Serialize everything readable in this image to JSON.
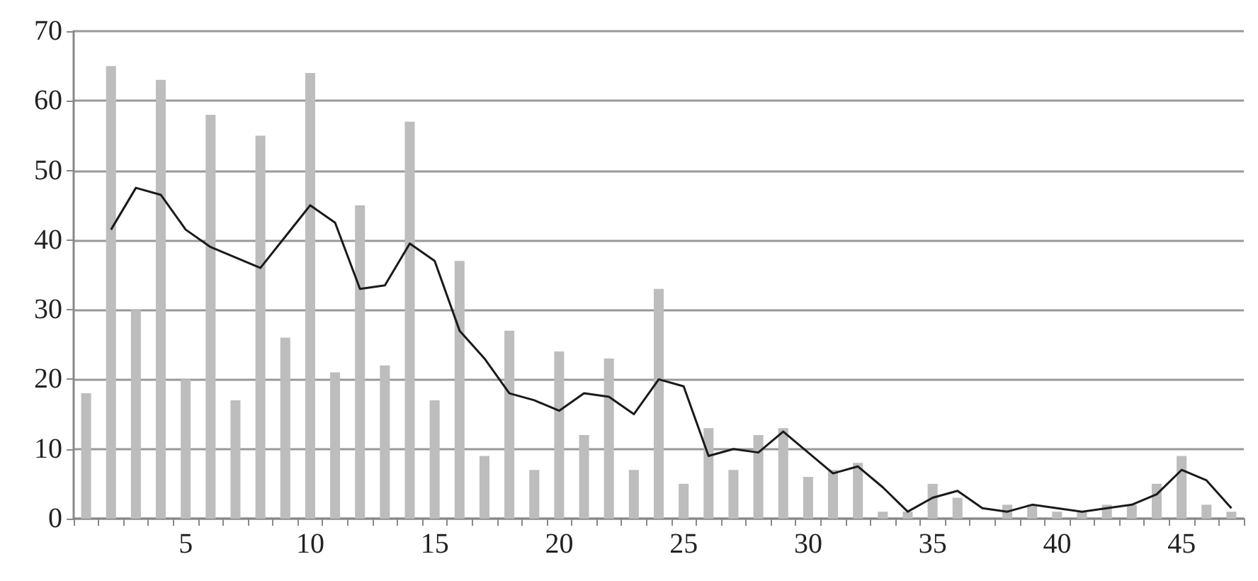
{
  "chart_data": {
    "type": "bar",
    "categories": [
      null,
      null,
      null,
      null,
      "5",
      null,
      null,
      null,
      null,
      "10",
      null,
      null,
      null,
      null,
      "15",
      null,
      null,
      null,
      null,
      "20",
      null,
      null,
      null,
      null,
      "25",
      null,
      null,
      null,
      null,
      "30",
      null,
      null,
      null,
      null,
      "35",
      null,
      null,
      null,
      null,
      "40",
      null,
      null,
      null,
      null,
      "45",
      null,
      null
    ],
    "series": [
      {
        "color": "#bdbdbd",
        "values": [
          18,
          65,
          30,
          63,
          20,
          58,
          17,
          55,
          26,
          64,
          21,
          45,
          22,
          57,
          17,
          37,
          9,
          27,
          7,
          24,
          12,
          23,
          7,
          33,
          5,
          13,
          7,
          12,
          13,
          6,
          7,
          8,
          1,
          1,
          5,
          3,
          0,
          2,
          2,
          1,
          1,
          2,
          2,
          5,
          9,
          2,
          1
        ]
      },
      {
        "type": "line",
        "color": "#1a1a1a",
        "values": [
          null,
          41.5,
          47.5,
          46.5,
          41.5,
          39,
          37.5,
          36,
          40.5,
          45,
          42.5,
          33,
          33.5,
          39.5,
          37,
          27,
          23,
          18,
          17,
          15.5,
          18,
          17.5,
          15,
          20,
          19,
          9,
          10,
          9.5,
          12.5,
          9.5,
          6.5,
          7.5,
          4.5,
          1,
          3,
          4,
          1.5,
          1,
          2,
          1.5,
          1,
          1.5,
          2,
          3.5,
          7,
          5.5,
          1.5
        ]
      }
    ],
    "ylim": [
      0,
      70
    ],
    "yticks": [
      0,
      10,
      20,
      30,
      40,
      50,
      60,
      70
    ],
    "grid": "y",
    "marker": "none",
    "line_style": "solid"
  }
}
